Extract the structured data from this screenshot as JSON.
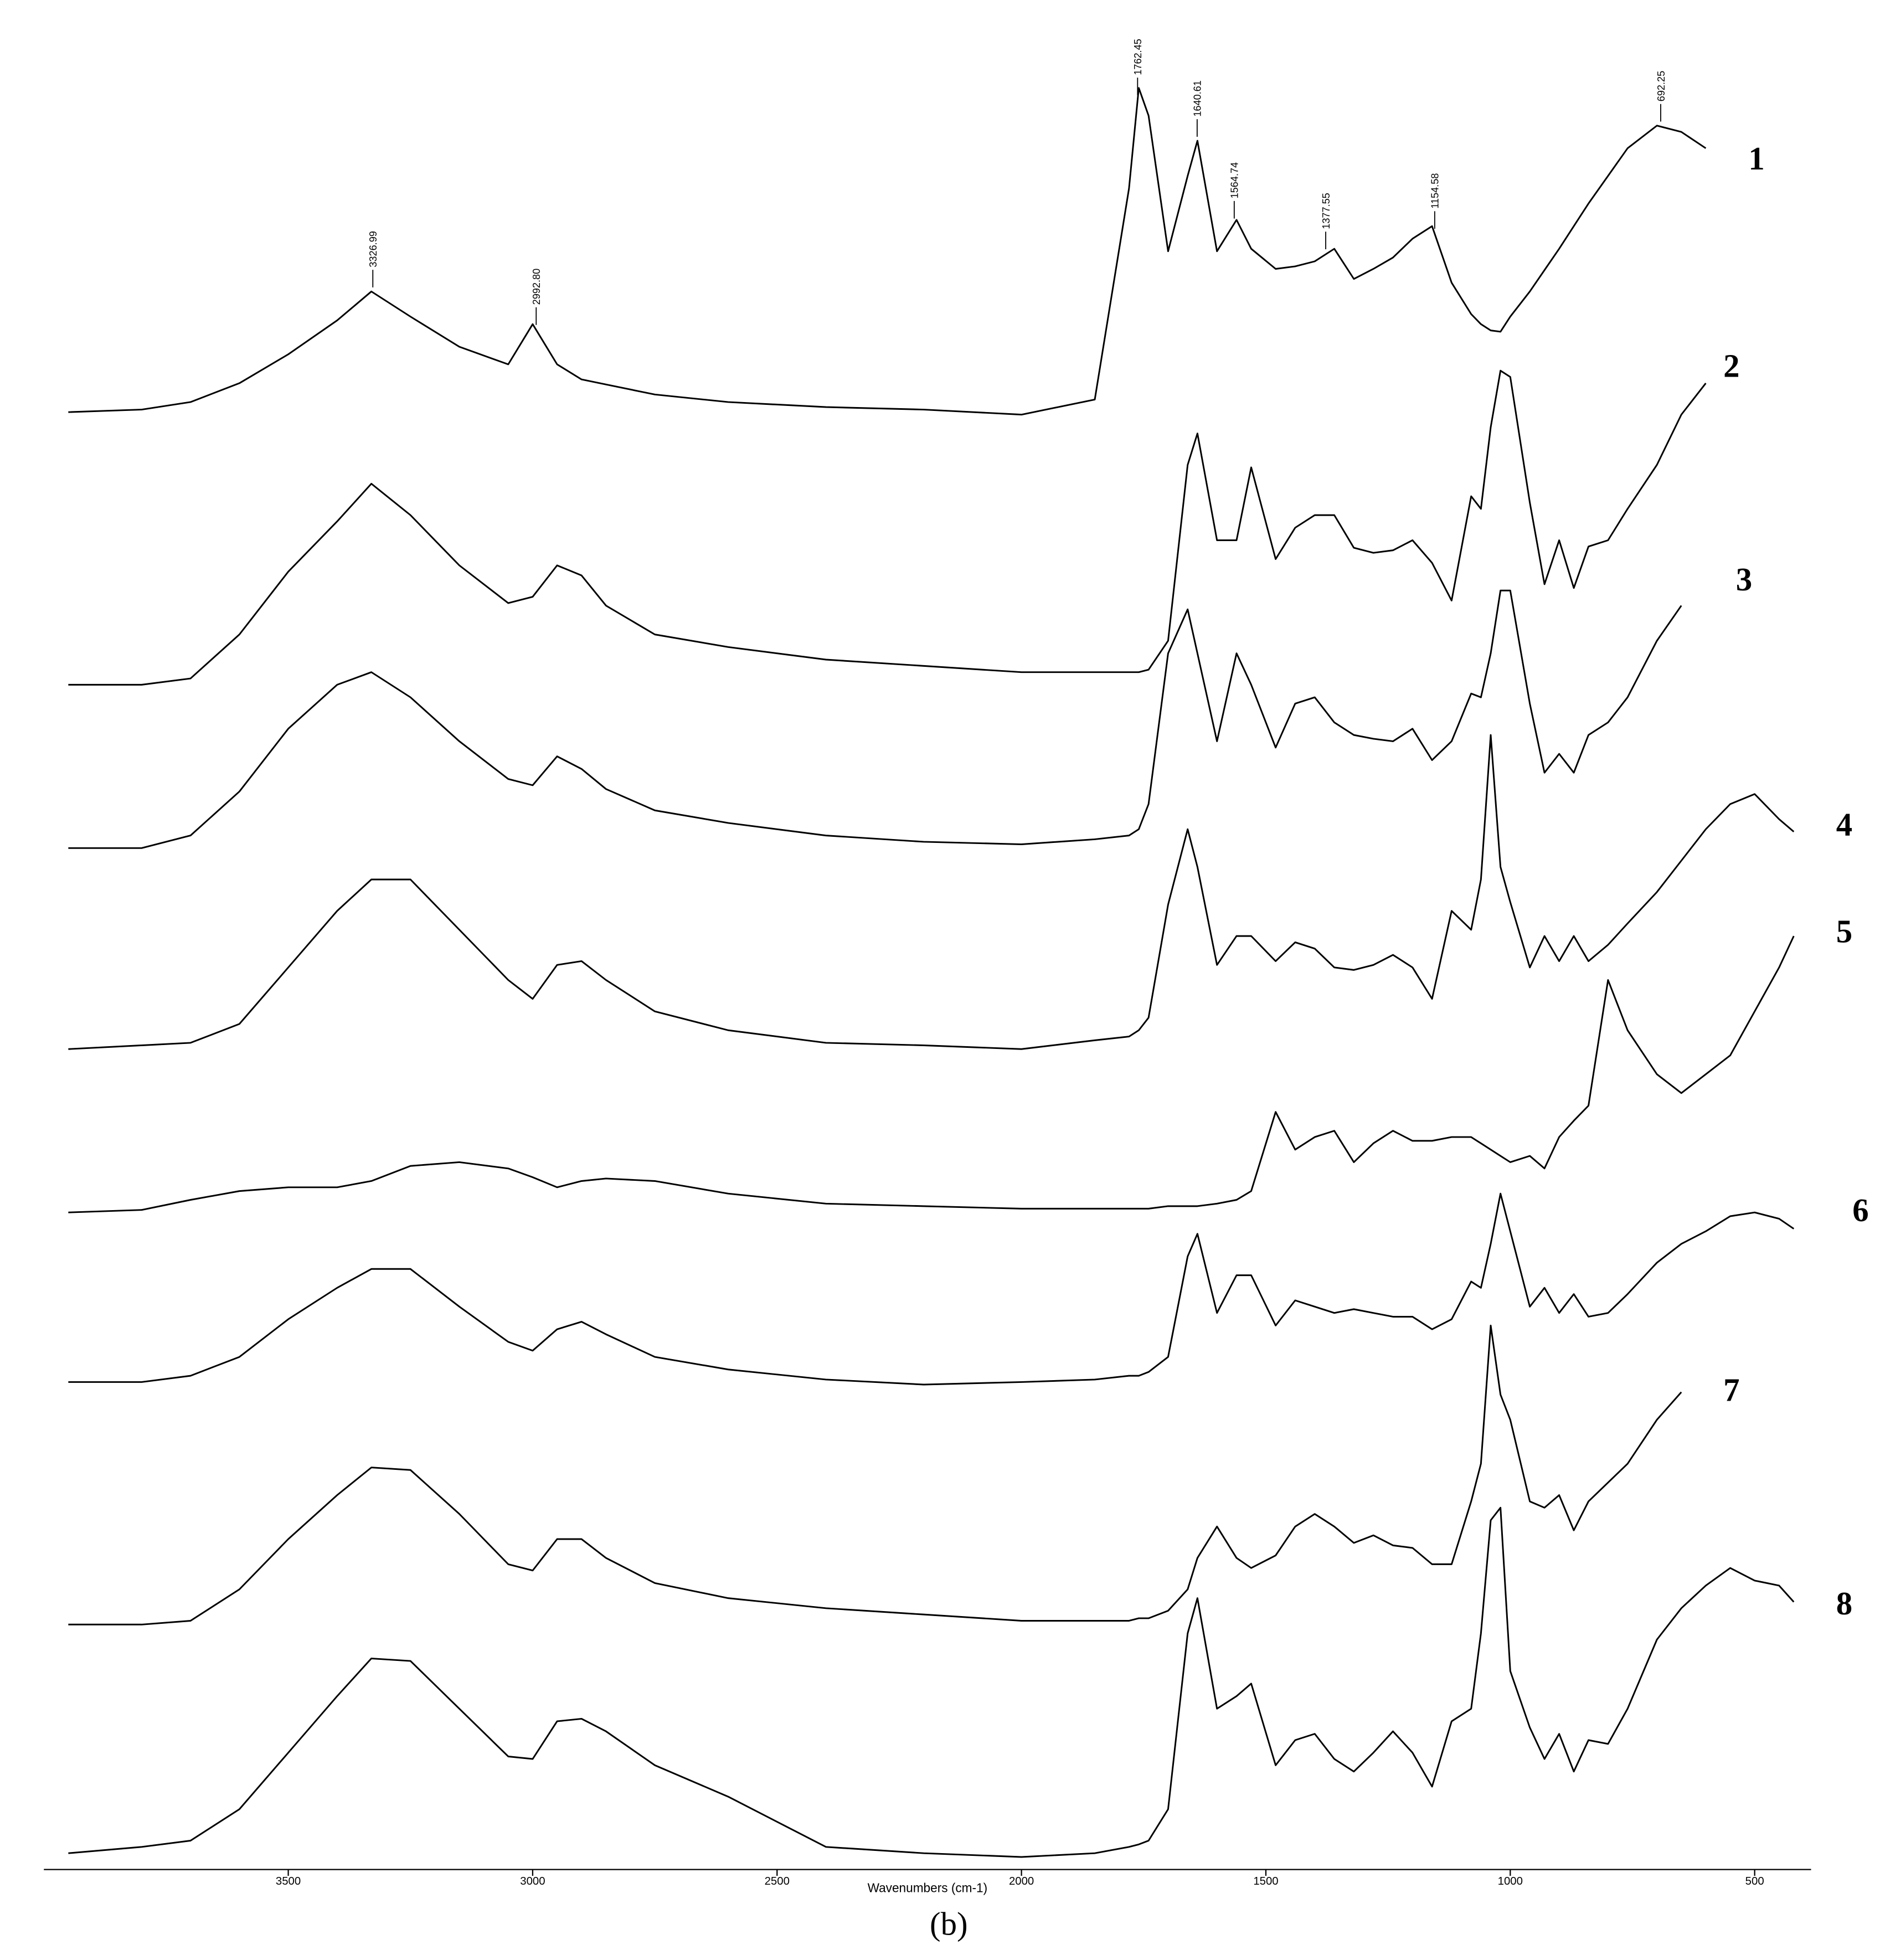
{
  "chart_data": {
    "type": "line",
    "xlabel": "Wavenumbers (cm-1)",
    "caption": "(b)",
    "xlim": [
      4000,
      400
    ],
    "ylim": [
      0,
      1500
    ],
    "xticks": [
      3500,
      3000,
      2500,
      2000,
      1500,
      1000,
      500
    ],
    "x": [
      3950,
      3800,
      3700,
      3600,
      3500,
      3400,
      3330,
      3250,
      3150,
      3050,
      3000,
      2950,
      2900,
      2850,
      2750,
      2600,
      2400,
      2200,
      2000,
      1850,
      1780,
      1760,
      1740,
      1700,
      1660,
      1640,
      1600,
      1560,
      1530,
      1480,
      1440,
      1400,
      1360,
      1320,
      1280,
      1240,
      1200,
      1160,
      1120,
      1080,
      1060,
      1040,
      1020,
      1000,
      960,
      930,
      900,
      870,
      840,
      800,
      760,
      700,
      650,
      600,
      550,
      500,
      450,
      420
    ],
    "series": [
      {
        "name": "1",
        "color": "#000000",
        "values": [
          1172,
          1174,
          1180,
          1195,
          1218,
          1245,
          1268,
          1248,
          1224,
          1210,
          1242,
          1210,
          1198,
          1194,
          1186,
          1180,
          1176,
          1174,
          1170,
          1182,
          1350,
          1430,
          1408,
          1300,
          1360,
          1388,
          1300,
          1325,
          1302,
          1286,
          1288,
          1292,
          1302,
          1278,
          1286,
          1295,
          1310,
          1320,
          1275,
          1250,
          1242,
          1237,
          1236,
          1248,
          1268,
          1285,
          1302,
          1320,
          1338,
          1360,
          1382,
          1400,
          1395,
          1382,
          null,
          null,
          null,
          null
        ]
      },
      {
        "name": "2",
        "color": "#000000",
        "values": [
          955,
          955,
          960,
          995,
          1045,
          1085,
          1115,
          1090,
          1050,
          1020,
          1025,
          1050,
          1042,
          1018,
          995,
          985,
          975,
          970,
          965,
          965,
          965,
          965,
          967,
          990,
          1130,
          1155,
          1070,
          1070,
          1128,
          1055,
          1080,
          1090,
          1090,
          1064,
          1060,
          1062,
          1070,
          1052,
          1022,
          1105,
          1095,
          1160,
          1205,
          1200,
          1100,
          1035,
          1070,
          1032,
          1065,
          1070,
          1095,
          1130,
          1170,
          1195,
          null,
          null,
          null,
          null
        ]
      },
      {
        "name": "3",
        "color": "#000000",
        "values": [
          825,
          825,
          835,
          870,
          920,
          955,
          965,
          945,
          910,
          880,
          875,
          898,
          888,
          872,
          855,
          845,
          835,
          830,
          828,
          832,
          835,
          840,
          860,
          980,
          1015,
          980,
          910,
          980,
          955,
          905,
          940,
          945,
          925,
          915,
          912,
          910,
          920,
          895,
          910,
          948,
          945,
          980,
          1030,
          1030,
          940,
          885,
          900,
          885,
          915,
          925,
          945,
          990,
          1018,
          null,
          null,
          null,
          null,
          null
        ]
      },
      {
        "name": "4",
        "color": "#000000",
        "values": [
          665,
          668,
          670,
          685,
          730,
          775,
          800,
          800,
          760,
          720,
          705,
          732,
          735,
          720,
          695,
          680,
          670,
          668,
          665,
          672,
          675,
          680,
          690,
          780,
          840,
          810,
          732,
          755,
          755,
          735,
          750,
          745,
          730,
          728,
          732,
          740,
          730,
          705,
          775,
          760,
          800,
          915,
          810,
          782,
          730,
          755,
          735,
          755,
          735,
          748,
          765,
          790,
          815,
          840,
          860,
          868,
          848,
          838
        ]
      },
      {
        "name": "5",
        "color": "#000000",
        "values": [
          535,
          537,
          545,
          552,
          555,
          555,
          560,
          572,
          575,
          570,
          563,
          555,
          560,
          562,
          560,
          550,
          542,
          540,
          538,
          538,
          538,
          538,
          538,
          540,
          540,
          540,
          542,
          545,
          552,
          615,
          585,
          595,
          600,
          575,
          590,
          600,
          592,
          592,
          595,
          595,
          590,
          585,
          580,
          575,
          580,
          570,
          595,
          608,
          620,
          720,
          680,
          645,
          630,
          645,
          660,
          695,
          730,
          755
        ]
      },
      {
        "name": "6",
        "color": "#000000",
        "values": [
          400,
          400,
          405,
          420,
          450,
          475,
          490,
          490,
          460,
          432,
          425,
          442,
          448,
          438,
          420,
          410,
          402,
          398,
          400,
          402,
          405,
          405,
          408,
          420,
          500,
          518,
          455,
          485,
          485,
          445,
          465,
          460,
          455,
          458,
          455,
          452,
          452,
          442,
          450,
          480,
          475,
          510,
          550,
          520,
          460,
          475,
          455,
          470,
          452,
          455,
          470,
          495,
          510,
          520,
          532,
          535,
          530,
          522
        ]
      },
      {
        "name": "7",
        "color": "#000000",
        "values": [
          207,
          207,
          210,
          235,
          275,
          310,
          332,
          330,
          295,
          255,
          250,
          275,
          275,
          260,
          240,
          228,
          220,
          215,
          210,
          210,
          210,
          212,
          212,
          218,
          235,
          260,
          285,
          260,
          252,
          262,
          285,
          295,
          285,
          272,
          278,
          270,
          268,
          255,
          255,
          305,
          335,
          445,
          390,
          370,
          305,
          300,
          310,
          282,
          305,
          320,
          335,
          370,
          392,
          null,
          null,
          null,
          null,
          null
        ]
      },
      {
        "name": "8",
        "color": "#000000",
        "values": [
          25,
          30,
          35,
          60,
          105,
          150,
          180,
          178,
          140,
          102,
          100,
          130,
          132,
          122,
          95,
          70,
          30,
          25,
          22,
          25,
          30,
          32,
          35,
          60,
          200,
          228,
          140,
          150,
          160,
          95,
          115,
          120,
          100,
          90,
          105,
          122,
          105,
          78,
          130,
          140,
          200,
          290,
          300,
          170,
          125,
          100,
          120,
          90,
          115,
          112,
          140,
          195,
          220,
          238,
          252,
          242,
          238,
          225
        ]
      }
    ],
    "annotations": [
      {
        "value": 3326.99,
        "label": "3326.99"
      },
      {
        "value": 2992.8,
        "label": "2992.80"
      },
      {
        "value": 1762.45,
        "label": "1762.45"
      },
      {
        "value": 1640.61,
        "label": "1640.61"
      },
      {
        "value": 1564.74,
        "label": "1564.74"
      },
      {
        "value": 1377.55,
        "label": "1377.55"
      },
      {
        "value": 1154.58,
        "label": "1154.58"
      },
      {
        "value": 692.25,
        "label": "692.25"
      }
    ]
  }
}
